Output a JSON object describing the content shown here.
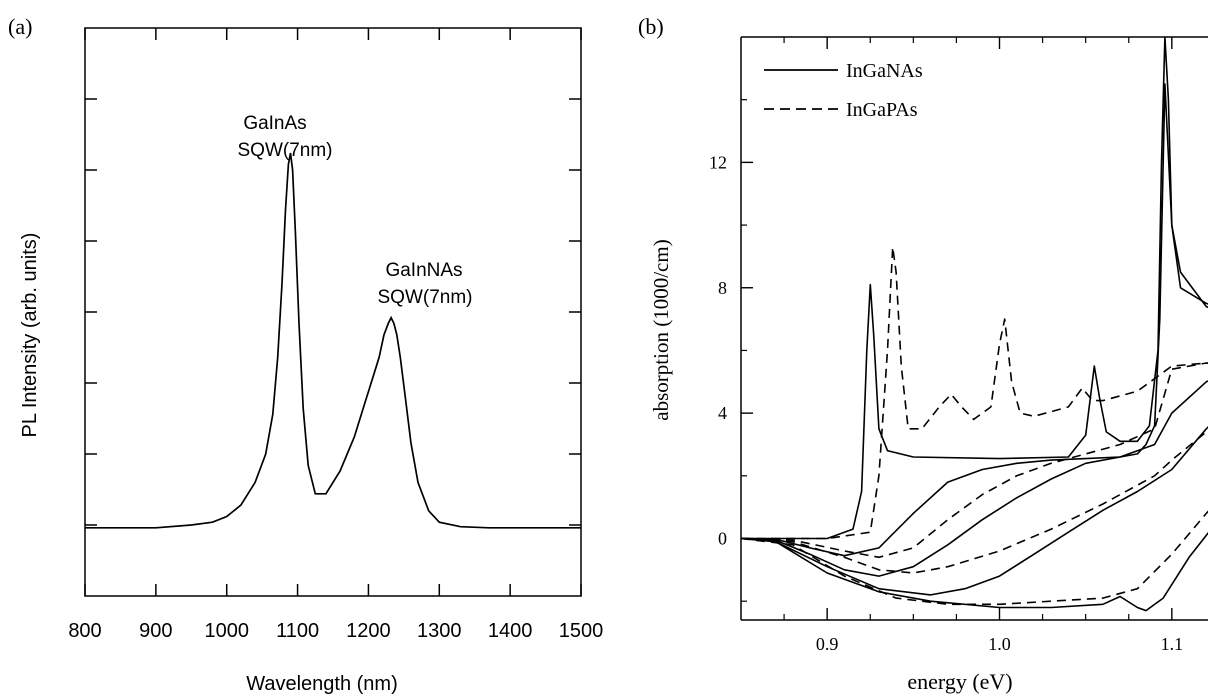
{
  "chart_data": [
    {
      "type": "line",
      "panel_label": "(a)",
      "xlabel": "Wavelength  (nm)",
      "ylabel": "PL Intensity  (arb. units)",
      "xlim": [
        800,
        1500
      ],
      "ylim": [
        0,
        1
      ],
      "x_ticks": [
        800,
        900,
        1000,
        1100,
        1200,
        1300,
        1400,
        1500
      ],
      "y_ticks_labeled": false,
      "annotations": [
        {
          "lines": [
            "GaInAs",
            "SQW(7nm)"
          ],
          "near_x": 1090
        },
        {
          "lines": [
            "GaInNAs",
            "SQW(7nm)"
          ],
          "near_x": 1235
        }
      ],
      "series": [
        {
          "x": [
            800,
            850,
            900,
            950,
            980,
            1000,
            1020,
            1040,
            1055,
            1065,
            1072,
            1078,
            1083,
            1087,
            1090,
            1093,
            1097,
            1102,
            1108,
            1115,
            1125,
            1140,
            1160,
            1180,
            1195,
            1205,
            1215,
            1222,
            1228,
            1232,
            1236,
            1240,
            1245,
            1252,
            1260,
            1270,
            1285,
            1300,
            1330,
            1370,
            1420,
            1500
          ],
          "values": [
            0.12,
            0.12,
            0.12,
            0.125,
            0.13,
            0.14,
            0.16,
            0.2,
            0.25,
            0.32,
            0.42,
            0.55,
            0.68,
            0.76,
            0.78,
            0.75,
            0.64,
            0.48,
            0.33,
            0.23,
            0.18,
            0.18,
            0.22,
            0.28,
            0.34,
            0.38,
            0.42,
            0.46,
            0.48,
            0.49,
            0.48,
            0.46,
            0.42,
            0.35,
            0.27,
            0.2,
            0.15,
            0.13,
            0.122,
            0.12,
            0.12,
            0.12
          ]
        }
      ]
    },
    {
      "type": "line",
      "panel_label": "(b)",
      "xlabel": "energy  (eV)",
      "ylabel": "absorption  (1000/cm)",
      "xlim": [
        0.85,
        1.15
      ],
      "ylim": [
        -2.6,
        16
      ],
      "x_ticks": [
        0.9,
        1.0,
        1.1
      ],
      "y_ticks": [
        0,
        4,
        8,
        12
      ],
      "legend": {
        "position": "top-left",
        "entries": [
          {
            "label": "InGaNAs",
            "style": "solid"
          },
          {
            "label": "InGaPAs",
            "style": "dashed"
          }
        ]
      },
      "series": [
        {
          "name": "InGaNAs",
          "style": "solid",
          "x": [
            0.85,
            0.87,
            0.9,
            0.915,
            0.92,
            0.923,
            0.925,
            0.927,
            0.93,
            0.935,
            0.95,
            1.0,
            1.04,
            1.05,
            1.055,
            1.058,
            1.062,
            1.07,
            1.08,
            1.087,
            1.092,
            1.094,
            1.096,
            1.098,
            1.1,
            1.105,
            1.12,
            1.15
          ],
          "values": [
            0,
            0,
            0,
            0.3,
            1.5,
            6,
            8.1,
            6.5,
            3.5,
            2.8,
            2.6,
            2.55,
            2.6,
            3.3,
            5.5,
            4.5,
            3.4,
            3.1,
            3.1,
            3.6,
            6,
            12,
            16,
            14,
            10,
            8.5,
            7.4,
            6.8
          ]
        },
        {
          "name": "InGaNAs",
          "style": "solid",
          "x": [
            0.85,
            0.87,
            0.89,
            0.91,
            0.93,
            0.95,
            0.97,
            0.99,
            1.01,
            1.03,
            1.05,
            1.07,
            1.08,
            1.085,
            1.09,
            1.093,
            1.096,
            1.1,
            1.105,
            1.12,
            1.15
          ],
          "values": [
            0,
            -0.02,
            -0.3,
            -0.55,
            -0.3,
            0.8,
            1.8,
            2.2,
            2.4,
            2.5,
            2.55,
            2.6,
            2.7,
            3.0,
            3.6,
            7,
            14.5,
            10,
            8,
            7.5,
            7
          ]
        },
        {
          "name": "InGaNAs",
          "style": "solid",
          "x": [
            0.85,
            0.87,
            0.89,
            0.91,
            0.93,
            0.95,
            0.97,
            0.99,
            1.01,
            1.03,
            1.05,
            1.07,
            1.09,
            1.1,
            1.12,
            1.15
          ],
          "values": [
            0,
            -0.05,
            -0.5,
            -1.0,
            -1.2,
            -0.9,
            -0.2,
            0.6,
            1.3,
            1.9,
            2.4,
            2.6,
            3.0,
            4.0,
            5.0,
            5.8
          ]
        },
        {
          "name": "InGaNAs",
          "style": "solid",
          "x": [
            0.85,
            0.87,
            0.9,
            0.93,
            0.96,
            0.98,
            1.0,
            1.02,
            1.04,
            1.06,
            1.08,
            1.1,
            1.12,
            1.15
          ],
          "values": [
            0,
            -0.1,
            -0.9,
            -1.6,
            -1.8,
            -1.6,
            -1.2,
            -0.5,
            0.2,
            0.9,
            1.5,
            2.2,
            3.5,
            5.0
          ]
        },
        {
          "name": "InGaNAs",
          "style": "solid",
          "x": [
            0.85,
            0.87,
            0.9,
            0.93,
            0.96,
            1.0,
            1.03,
            1.06,
            1.07,
            1.08,
            1.085,
            1.095,
            1.11,
            1.13,
            1.15
          ],
          "values": [
            0,
            -0.1,
            -1.1,
            -1.7,
            -2.0,
            -2.2,
            -2.2,
            -2.1,
            -1.85,
            -2.2,
            -2.3,
            -1.9,
            -0.6,
            0.8,
            2.0
          ]
        },
        {
          "name": "InGaPAs",
          "style": "dashed",
          "x": [
            0.85,
            0.9,
            0.925,
            0.93,
            0.935,
            0.938,
            0.94,
            0.943,
            0.947,
            0.955,
            0.965,
            0.972,
            0.978,
            0.985,
            0.995,
            1.0,
            1.003,
            1.007,
            1.012,
            1.02,
            1.04,
            1.048,
            1.054,
            1.06,
            1.08,
            1.1,
            1.12,
            1.15
          ],
          "values": [
            0,
            0,
            0.2,
            2.0,
            6.0,
            9.3,
            8.5,
            5.5,
            3.5,
            3.5,
            4.2,
            4.6,
            4.2,
            3.8,
            4.2,
            6.2,
            7.0,
            5.0,
            4.0,
            3.9,
            4.2,
            4.8,
            4.4,
            4.4,
            4.7,
            5.5,
            5.6,
            5.5
          ]
        },
        {
          "name": "InGaPAs",
          "style": "dashed",
          "x": [
            0.85,
            0.88,
            0.91,
            0.93,
            0.95,
            0.97,
            0.99,
            1.01,
            1.03,
            1.05,
            1.07,
            1.09,
            1.1,
            1.12,
            1.15
          ],
          "values": [
            0,
            -0.05,
            -0.4,
            -0.6,
            -0.3,
            0.6,
            1.4,
            2.0,
            2.4,
            2.7,
            3.0,
            3.5,
            5.4,
            5.6,
            5.3
          ]
        },
        {
          "name": "InGaPAs",
          "style": "dashed",
          "x": [
            0.85,
            0.88,
            0.91,
            0.93,
            0.95,
            0.97,
            1.0,
            1.03,
            1.06,
            1.09,
            1.1,
            1.12,
            1.15
          ],
          "values": [
            0,
            -0.1,
            -0.6,
            -1.0,
            -1.1,
            -0.9,
            -0.4,
            0.3,
            1.1,
            2.0,
            2.5,
            3.4,
            4.5
          ]
        },
        {
          "name": "InGaPAs",
          "style": "dashed",
          "x": [
            0.85,
            0.88,
            0.91,
            0.94,
            0.97,
            1.0,
            1.03,
            1.06,
            1.08,
            1.1,
            1.12,
            1.15
          ],
          "values": [
            0,
            -0.2,
            -1.2,
            -1.9,
            -2.1,
            -2.1,
            -2.0,
            -1.9,
            -1.6,
            -0.5,
            0.8,
            2.6
          ]
        }
      ]
    }
  ]
}
